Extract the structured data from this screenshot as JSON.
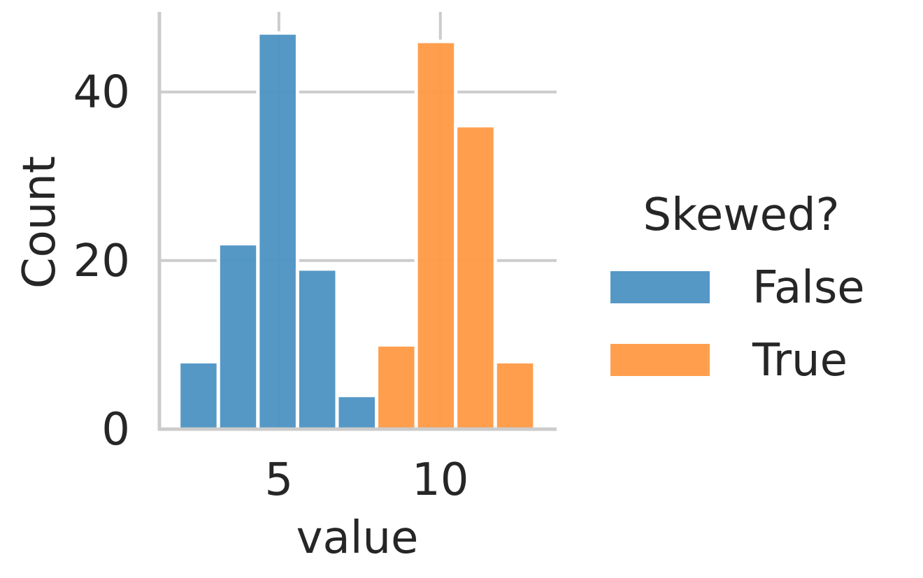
{
  "chart_data": {
    "type": "bar",
    "title": "",
    "xlabel": "value",
    "ylabel": "Count",
    "xlim": [
      1.3,
      13.6
    ],
    "ylim": [
      0,
      49.5
    ],
    "xticks": [
      5,
      10
    ],
    "yticks": [
      0,
      20,
      40
    ],
    "grid": true,
    "bin_width": 1.225,
    "legend": {
      "title": "Skewed?",
      "placement": "right"
    },
    "series": [
      {
        "name": "False",
        "color": "#4c92c3",
        "bins": [
          {
            "x0": 1.9,
            "x1": 3.125,
            "count": 8
          },
          {
            "x0": 3.125,
            "x1": 4.35,
            "count": 22
          },
          {
            "x0": 4.35,
            "x1": 5.575,
            "count": 47
          },
          {
            "x0": 5.575,
            "x1": 6.8,
            "count": 19
          },
          {
            "x0": 6.8,
            "x1": 8.025,
            "count": 4
          }
        ]
      },
      {
        "name": "True",
        "color": "#ff9a45",
        "bins": [
          {
            "x0": 8.025,
            "x1": 9.25,
            "count": 10
          },
          {
            "x0": 9.25,
            "x1": 10.475,
            "count": 46
          },
          {
            "x0": 10.475,
            "x1": 11.7,
            "count": 36
          },
          {
            "x0": 11.7,
            "x1": 12.925,
            "count": 8
          }
        ]
      }
    ]
  }
}
